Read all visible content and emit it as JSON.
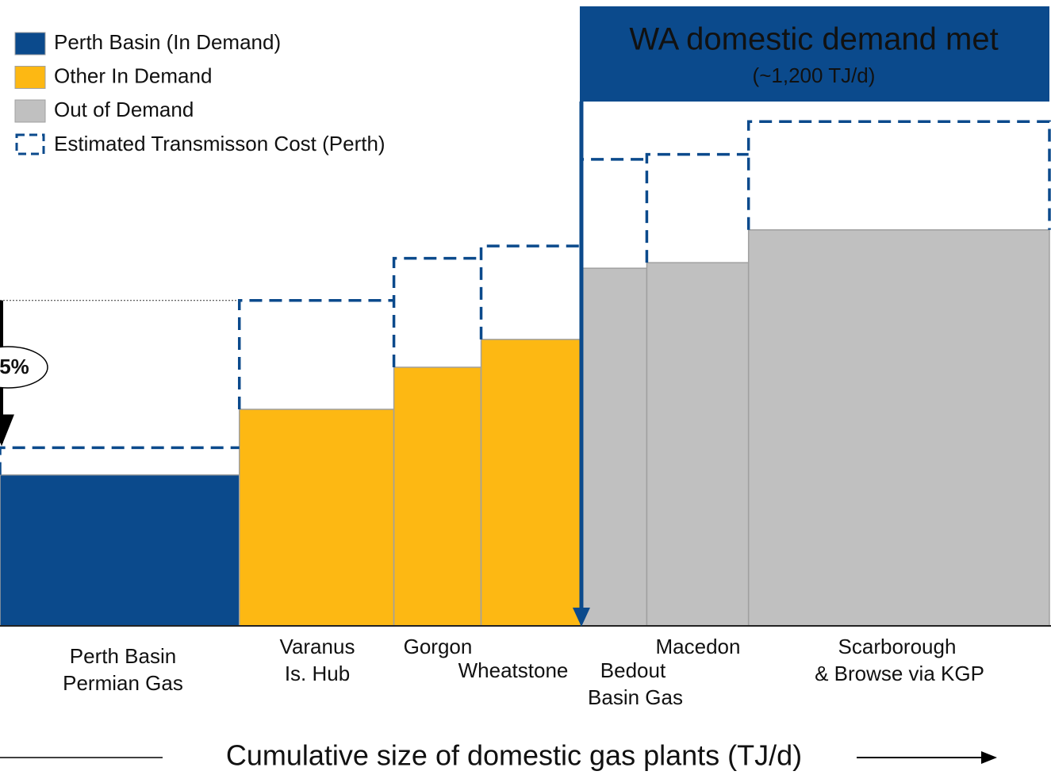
{
  "chart_data": {
    "type": "cost_curve",
    "xlabel": "Cumulative size of domestic gas plants (TJ/d)",
    "categories": [
      [
        "Perth Basin",
        "Permian Gas"
      ],
      [
        "Varanus",
        "Is. Hub"
      ],
      [
        "Gorgon"
      ],
      [
        "Wheatstone"
      ],
      [
        "Bedout",
        "Basin Gas"
      ],
      [
        "Macedon"
      ],
      [
        "Scarborough",
        "& Browse via KGP"
      ]
    ],
    "widths": [
      494,
      319,
      180,
      206,
      136,
      210,
      621
    ],
    "values": [
      24.4,
      35,
      41.8,
      46.3,
      57.8,
      58.7,
      64
    ],
    "transmission_values": [
      28.8,
      52.6,
      59.4,
      61.4,
      75.4,
      76.2,
      81.5
    ],
    "groups": [
      0,
      1,
      1,
      1,
      2,
      2,
      2
    ],
    "series": [
      {
        "name": "Perth Basin (In Demand)",
        "color": "#0b4a8c"
      },
      {
        "name": "Other In Demand",
        "color": "#fdb813"
      },
      {
        "name": "Out of Demand",
        "color": "#c0c0c0"
      }
    ],
    "cost_line": {
      "name": "Estimated Transmisson Cost (Perth)",
      "color": "#0b4a8c"
    },
    "demand": {
      "title": "WA domestic demand met",
      "label": "(~1,200 TJ/d)",
      "value": 1200,
      "color": "#0b4a8c"
    },
    "annotation": "5%",
    "xlim": [
      0,
      2166
    ],
    "ylim": [
      0,
      100
    ]
  }
}
